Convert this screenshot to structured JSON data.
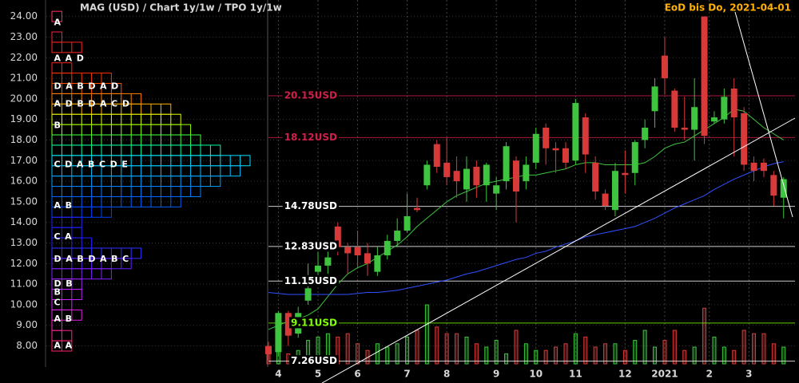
{
  "chart_data": {
    "type": "candlestick",
    "title": "MAG (USD) /  Chart 1y/1w / TPO 1y/1w",
    "subtitle": "EoD bis Do, 2021-04-01",
    "up_color": "#3ec43e",
    "down_color": "#d83a3a",
    "xlim": [
      0,
      53.15
    ],
    "xticks": [
      {
        "value": 1,
        "label": "4"
      },
      {
        "value": 5,
        "label": "5"
      },
      {
        "value": 9,
        "label": "6"
      },
      {
        "value": 14,
        "label": "7"
      },
      {
        "value": 18,
        "label": "8"
      },
      {
        "value": 23,
        "label": "9"
      },
      {
        "value": 27,
        "label": "10"
      },
      {
        "value": 31,
        "label": "11"
      },
      {
        "value": 36,
        "label": "12"
      },
      {
        "value": 40,
        "label": "2021"
      },
      {
        "value": 44.5,
        "label": "2"
      },
      {
        "value": 48.5,
        "label": "3"
      }
    ],
    "ylim": [
      6.2,
      24.8
    ],
    "yticks": [
      {
        "value": 8,
        "label": "8.00"
      },
      {
        "value": 9,
        "label": "9.00"
      },
      {
        "value": 10,
        "label": "10.00"
      },
      {
        "value": 11,
        "label": "11.00"
      },
      {
        "value": 12,
        "label": "12.00"
      },
      {
        "value": 13,
        "label": "13.00"
      },
      {
        "value": 14,
        "label": "14.00"
      },
      {
        "value": 15,
        "label": "15.00"
      },
      {
        "value": 16,
        "label": "16.00"
      },
      {
        "value": 17,
        "label": "17.00"
      },
      {
        "value": 18,
        "label": "18.00"
      },
      {
        "value": 19,
        "label": "19.00"
      },
      {
        "value": 20,
        "label": "20.00"
      },
      {
        "value": 21,
        "label": "21.00"
      },
      {
        "value": 22,
        "label": "22.00"
      },
      {
        "value": 23,
        "label": "23.00"
      },
      {
        "value": 24,
        "label": "24.00"
      }
    ],
    "grid": true,
    "candles": {
      "open": [
        8.0,
        7.7,
        9.6,
        8.6,
        10.2,
        11.6,
        11.9,
        13.8,
        12.8,
        12.8,
        12.5,
        11.6,
        12.4,
        13.1,
        13.6,
        14.7,
        15.8,
        17.8,
        16.9,
        16.5,
        15.6,
        16.7,
        15.8,
        15.4,
        16.0,
        17.0,
        16.0,
        16.9,
        18.6,
        17.6,
        17.6,
        17.0,
        19.1,
        16.9,
        15.4,
        14.6,
        16.4,
        16.4,
        18.0,
        19.4,
        22.1,
        20.4,
        18.6,
        18.5,
        24.0,
        18.9,
        19.0,
        20.5,
        19.3,
        16.9,
        16.9,
        16.3,
        15.2
      ],
      "high": [
        8.2,
        9.7,
        9.7,
        9.9,
        12.0,
        12.8,
        12.7,
        14.0,
        13.0,
        13.6,
        13.0,
        12.8,
        13.4,
        14.2,
        15.4,
        15.2,
        17.0,
        18.0,
        18.1,
        17.2,
        17.2,
        17.0,
        16.9,
        16.2,
        17.9,
        17.2,
        17.2,
        18.6,
        18.8,
        17.9,
        17.9,
        20.0,
        19.3,
        17.2,
        15.6,
        16.9,
        17.5,
        18.0,
        19.0,
        21.0,
        23.0,
        20.5,
        20.1,
        21.0,
        24.0,
        19.4,
        20.5,
        21.0,
        19.6,
        17.2,
        17.1,
        16.5,
        16.2
      ],
      "low": [
        7.3,
        7.5,
        8.0,
        8.4,
        10.0,
        11.0,
        11.5,
        12.4,
        11.5,
        11.8,
        11.4,
        11.4,
        12.2,
        12.8,
        13.5,
        14.5,
        15.6,
        16.4,
        15.8,
        15.2,
        15.0,
        15.2,
        15.0,
        14.6,
        15.6,
        14.0,
        15.6,
        16.6,
        16.8,
        16.4,
        16.6,
        16.8,
        16.4,
        15.1,
        14.6,
        14.3,
        15.4,
        15.8,
        17.6,
        18.6,
        20.2,
        18.4,
        18.0,
        17.0,
        17.8,
        18.8,
        18.8,
        17.2,
        16.5,
        16.0,
        16.2,
        14.8,
        14.2
      ],
      "close": [
        7.6,
        9.6,
        8.5,
        9.6,
        10.8,
        11.9,
        12.3,
        12.8,
        12.5,
        12.4,
        12.0,
        12.4,
        13.1,
        13.6,
        14.3,
        14.6,
        16.8,
        16.7,
        16.2,
        16.0,
        16.6,
        15.8,
        16.8,
        15.8,
        17.7,
        15.5,
        16.8,
        18.3,
        17.6,
        17.5,
        16.9,
        19.8,
        17.3,
        15.5,
        14.8,
        16.5,
        16.3,
        17.9,
        18.6,
        20.6,
        21.0,
        18.6,
        18.5,
        19.6,
        18.2,
        19.1,
        20.1,
        19.1,
        16.8,
        16.5,
        16.5,
        15.3,
        16.1
      ]
    },
    "volume_lim": [
      0,
      100
    ],
    "volume": [
      15,
      60,
      15,
      20,
      35,
      40,
      45,
      40,
      45,
      30,
      20,
      30,
      25,
      30,
      40,
      50,
      88,
      55,
      45,
      45,
      40,
      30,
      25,
      35,
      15,
      50,
      30,
      20,
      20,
      25,
      30,
      45,
      40,
      25,
      30,
      30,
      20,
      35,
      50,
      25,
      35,
      50,
      20,
      25,
      83,
      40,
      25,
      20,
      50,
      45,
      45,
      30,
      25
    ],
    "series": [
      {
        "color": "#3ec43e",
        "values": [
          8.8,
          9.0,
          9.2,
          9.3,
          9.5,
          9.8,
          10.4,
          11.0,
          11.5,
          11.8,
          12.0,
          12.3,
          12.6,
          12.9,
          13.3,
          13.8,
          14.2,
          14.6,
          15.0,
          15.3,
          15.5,
          15.7,
          15.9,
          16.0,
          16.1,
          16.2,
          16.3,
          16.3,
          16.4,
          16.5,
          16.6,
          16.8,
          16.9,
          16.9,
          16.8,
          16.8,
          16.8,
          16.8,
          16.9,
          17.2,
          17.6,
          17.8,
          17.9,
          18.2,
          18.5,
          18.8,
          19.1,
          19.5,
          19.4,
          19.0,
          18.6,
          18.3,
          18.0
        ]
      },
      {
        "color": "#3050ff",
        "values": [
          10.6,
          10.55,
          10.5,
          10.5,
          10.5,
          10.5,
          10.5,
          10.5,
          10.5,
          10.55,
          10.6,
          10.6,
          10.65,
          10.7,
          10.8,
          10.9,
          11.0,
          11.1,
          11.2,
          11.35,
          11.5,
          11.6,
          11.75,
          11.9,
          12.05,
          12.2,
          12.3,
          12.5,
          12.6,
          12.8,
          12.95,
          13.1,
          13.3,
          13.4,
          13.5,
          13.6,
          13.7,
          13.8,
          14.0,
          14.2,
          14.45,
          14.7,
          14.9,
          15.1,
          15.3,
          15.6,
          15.85,
          16.1,
          16.3,
          16.5,
          16.7,
          16.85,
          16.95
        ]
      }
    ],
    "levels": [
      {
        "value": 20.15,
        "label": "20.15USD",
        "color": "#d0204a"
      },
      {
        "value": 18.12,
        "label": "18.12USD",
        "color": "#d0204a"
      },
      {
        "value": 14.78,
        "label": "14.78USD",
        "color": "#ffffff"
      },
      {
        "value": 12.83,
        "label": "12.83USD",
        "color": "#ffffff"
      },
      {
        "value": 11.15,
        "label": "11.15USD",
        "color": "#ffffff"
      },
      {
        "value": 9.11,
        "label": "9.11USD",
        "color": "#80ff00"
      },
      {
        "value": 7.26,
        "label": "7.26USD",
        "color": "#ffffff"
      }
    ],
    "tpo_profile": [
      {
        "price": 24,
        "count": 1,
        "color": "#ff3060"
      },
      {
        "price": 23,
        "count": 1,
        "color": "#ff2040"
      },
      {
        "price": 22.5,
        "count": 3,
        "color": "#ff2020"
      },
      {
        "price": 21.5,
        "count": 2,
        "color": "#ff2020"
      },
      {
        "price": 21,
        "count": 6,
        "color": "#ff3000"
      },
      {
        "price": 20.5,
        "count": 7,
        "color": "#ff5000"
      },
      {
        "price": 20,
        "count": 9,
        "color": "#ff8000"
      },
      {
        "price": 19.5,
        "count": 12,
        "color": "#ffb000"
      },
      {
        "price": 19,
        "count": 13,
        "color": "#e0ff00"
      },
      {
        "price": 18.5,
        "count": 14,
        "color": "#a0ff00"
      },
      {
        "price": 18,
        "count": 15,
        "color": "#40ff40"
      },
      {
        "price": 17.5,
        "count": 17,
        "color": "#00ffa0"
      },
      {
        "price": 17,
        "count": 20,
        "color": "#00e0ff"
      },
      {
        "price": 16.5,
        "count": 19,
        "color": "#00c0ff"
      },
      {
        "price": 16,
        "count": 17,
        "color": "#00a0ff"
      },
      {
        "price": 15.5,
        "count": 15,
        "color": "#0080ff"
      },
      {
        "price": 15,
        "count": 13,
        "color": "#0060ff"
      },
      {
        "price": 14.5,
        "count": 6,
        "color": "#0040ff"
      },
      {
        "price": 14,
        "count": 3,
        "color": "#2020ff"
      },
      {
        "price": 13.5,
        "count": 3,
        "color": "#2020ff"
      },
      {
        "price": 13,
        "count": 4,
        "color": "#2020ff"
      },
      {
        "price": 12.5,
        "count": 9,
        "color": "#3030ff"
      },
      {
        "price": 12,
        "count": 8,
        "color": "#6020ff"
      },
      {
        "price": 11.5,
        "count": 6,
        "color": "#8020ff"
      },
      {
        "price": 11,
        "count": 3,
        "color": "#a020ff"
      },
      {
        "price": 10.5,
        "count": 3,
        "color": "#c020ff"
      },
      {
        "price": 10,
        "count": 2,
        "color": "#d020ff"
      },
      {
        "price": 9.5,
        "count": 3,
        "color": "#e020e0"
      },
      {
        "price": 9,
        "count": 1,
        "color": "#ff20c0"
      },
      {
        "price": 8.5,
        "count": 2,
        "color": "#ff2090"
      },
      {
        "price": 8,
        "count": 2,
        "color": "#ff2070"
      }
    ],
    "tpo_letters": [
      {
        "price": 23.7,
        "letters": "A"
      },
      {
        "price": 21.95,
        "letters": "AAD"
      },
      {
        "price": 20.6,
        "letters": "DABDAD"
      },
      {
        "price": 19.75,
        "letters": "ADBDACD"
      },
      {
        "price": 18.7,
        "letters": "B"
      },
      {
        "price": 16.8,
        "letters": "CDABCDE"
      },
      {
        "price": 14.8,
        "letters": "AB"
      },
      {
        "price": 13.3,
        "letters": "CA"
      },
      {
        "price": 12.2,
        "letters": "DABDABC"
      },
      {
        "price": 11.0,
        "letters": "DB"
      },
      {
        "price": 10.6,
        "letters": "B"
      },
      {
        "price": 10.1,
        "letters": "C"
      },
      {
        "price": 9.3,
        "letters": "AB"
      },
      {
        "price": 8.0,
        "letters": "AA"
      }
    ]
  }
}
